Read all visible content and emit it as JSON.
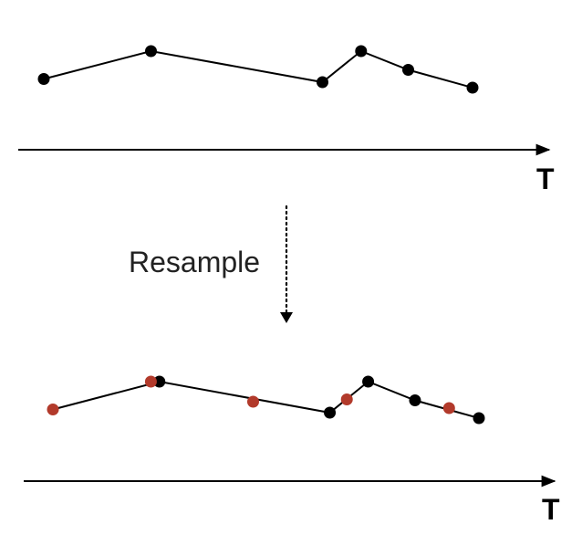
{
  "diagram": {
    "top_panel": {
      "axis_label": "T",
      "points": [
        {
          "t": 0,
          "v": 0.39
        },
        {
          "t": 0.25,
          "v": 1.0
        },
        {
          "t": 0.65,
          "v": 0.32
        },
        {
          "t": 0.74,
          "v": 1.0
        },
        {
          "t": 0.85,
          "v": 0.59
        },
        {
          "t": 1.0,
          "v": 0.2
        }
      ]
    },
    "arrow_label": "Resample",
    "bottom_panel": {
      "axis_label": "T",
      "original_points": [
        {
          "t": 0.25,
          "v": 1.0
        },
        {
          "t": 0.65,
          "v": 0.32
        },
        {
          "t": 0.74,
          "v": 1.0
        },
        {
          "t": 0.85,
          "v": 0.59
        },
        {
          "t": 1.0,
          "v": 0.2
        }
      ],
      "resampled_points": [
        {
          "t": 0.0,
          "v": 0.39
        },
        {
          "t": 0.23,
          "v": 1.0
        },
        {
          "t": 0.47,
          "v": 0.56
        },
        {
          "t": 0.69,
          "v": 0.61
        },
        {
          "t": 0.93,
          "v": 0.42
        }
      ]
    },
    "colors": {
      "original": "#000000",
      "resampled": "#b23a2b",
      "line": "#000000"
    }
  }
}
